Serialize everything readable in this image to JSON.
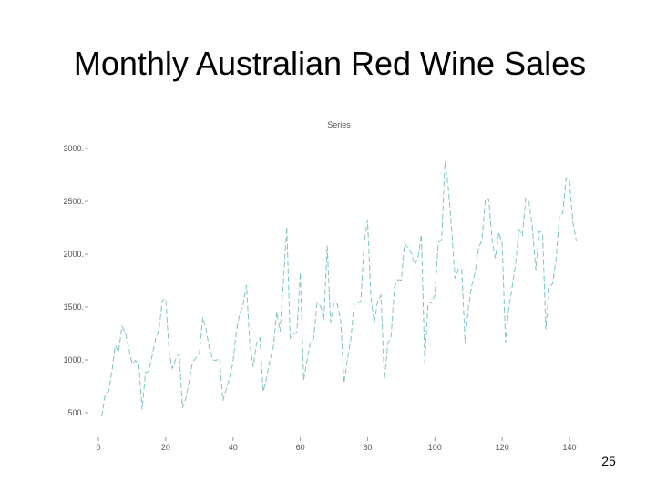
{
  "slide_title": "Monthly Australian Red Wine Sales",
  "page_number": "25",
  "chart_data": {
    "type": "line",
    "title": "Series",
    "x": [
      1,
      2,
      3,
      4,
      5,
      6,
      7,
      8,
      9,
      10,
      11,
      12,
      13,
      14,
      15,
      16,
      17,
      18,
      19,
      20,
      21,
      22,
      23,
      24,
      25,
      26,
      27,
      28,
      29,
      30,
      31,
      32,
      33,
      34,
      35,
      36,
      37,
      38,
      39,
      40,
      41,
      42,
      43,
      44,
      45,
      46,
      47,
      48,
      49,
      50,
      51,
      52,
      53,
      54,
      55,
      56,
      57,
      58,
      59,
      60,
      61,
      62,
      63,
      64,
      65,
      66,
      67,
      68,
      69,
      70,
      71,
      72,
      73,
      74,
      75,
      76,
      77,
      78,
      79,
      80,
      81,
      82,
      83,
      84,
      85,
      86,
      87,
      88,
      89,
      90,
      91,
      92,
      93,
      94,
      95,
      96,
      97,
      98,
      99,
      100,
      101,
      102,
      103,
      104,
      105,
      106,
      107,
      108,
      109,
      110,
      111,
      112,
      113,
      114,
      115,
      116,
      117,
      118,
      119,
      120,
      121,
      122,
      123,
      124,
      125,
      126,
      127,
      128,
      129,
      130,
      131,
      132,
      133,
      134,
      135,
      136,
      137,
      138,
      139,
      140,
      141,
      142
    ],
    "series": [
      {
        "color": "#7fc4c4",
        "values": [
          464,
          675,
          703,
          887,
          1139,
          1077,
          1318,
          1260,
          1120,
          963,
          996,
          960,
          530,
          883,
          894,
          1045,
          1199,
          1287,
          1565,
          1577,
          1076,
          918,
          1008,
          1063,
          544,
          635,
          804,
          980,
          1018,
          1064,
          1404,
          1286,
          1104,
          999,
          996,
          1015,
          615,
          722,
          832,
          977,
          1270,
          1437,
          1520,
          1708,
          1151,
          934,
          1159,
          1209,
          699,
          830,
          996,
          1124,
          1458,
          1270,
          1753,
          2258,
          1208,
          1241,
          1265,
          1828,
          809,
          997,
          1164,
          1205,
          1538,
          1513,
          1378,
          2083,
          1357,
          1536,
          1526,
          1376,
          779,
          1005,
          1193,
          1522,
          1539,
          1546,
          2116,
          2326,
          1596,
          1356,
          1553,
          1613,
          814,
          1150,
          1225,
          1691,
          1759,
          1754,
          2100,
          2062,
          2012,
          1897,
          1964,
          2186,
          966,
          1549,
          1538,
          1612,
          2109,
          2137,
          2876,
          2627,
          2216,
          1770,
          1862,
          1857,
          1160,
          1510,
          1709,
          1831,
          2055,
          2136,
          2525,
          2523,
          2130,
          1960,
          2209,
          2102,
          1164,
          1497,
          1695,
          1910,
          2233,
          2178,
          2529,
          2489,
          2243,
          1849,
          2221,
          2196,
          1286,
          1689,
          1720,
          1946,
          2356,
          2385,
          2721,
          2693,
          2302,
          2128
        ]
      }
    ],
    "xlim": [
      0,
      140
    ],
    "xticks": [
      0,
      20,
      40,
      60,
      80,
      100,
      120,
      140
    ],
    "ylim": [
      500,
      3000
    ],
    "yticks": [
      {
        "value": 500,
        "label": "500."
      },
      {
        "value": 1000,
        "label": "1000."
      },
      {
        "value": 1500,
        "label": "1500."
      },
      {
        "value": 2000,
        "label": "2000."
      },
      {
        "value": 2500,
        "label": "2500."
      },
      {
        "value": 3000,
        "label": "3000."
      }
    ]
  }
}
